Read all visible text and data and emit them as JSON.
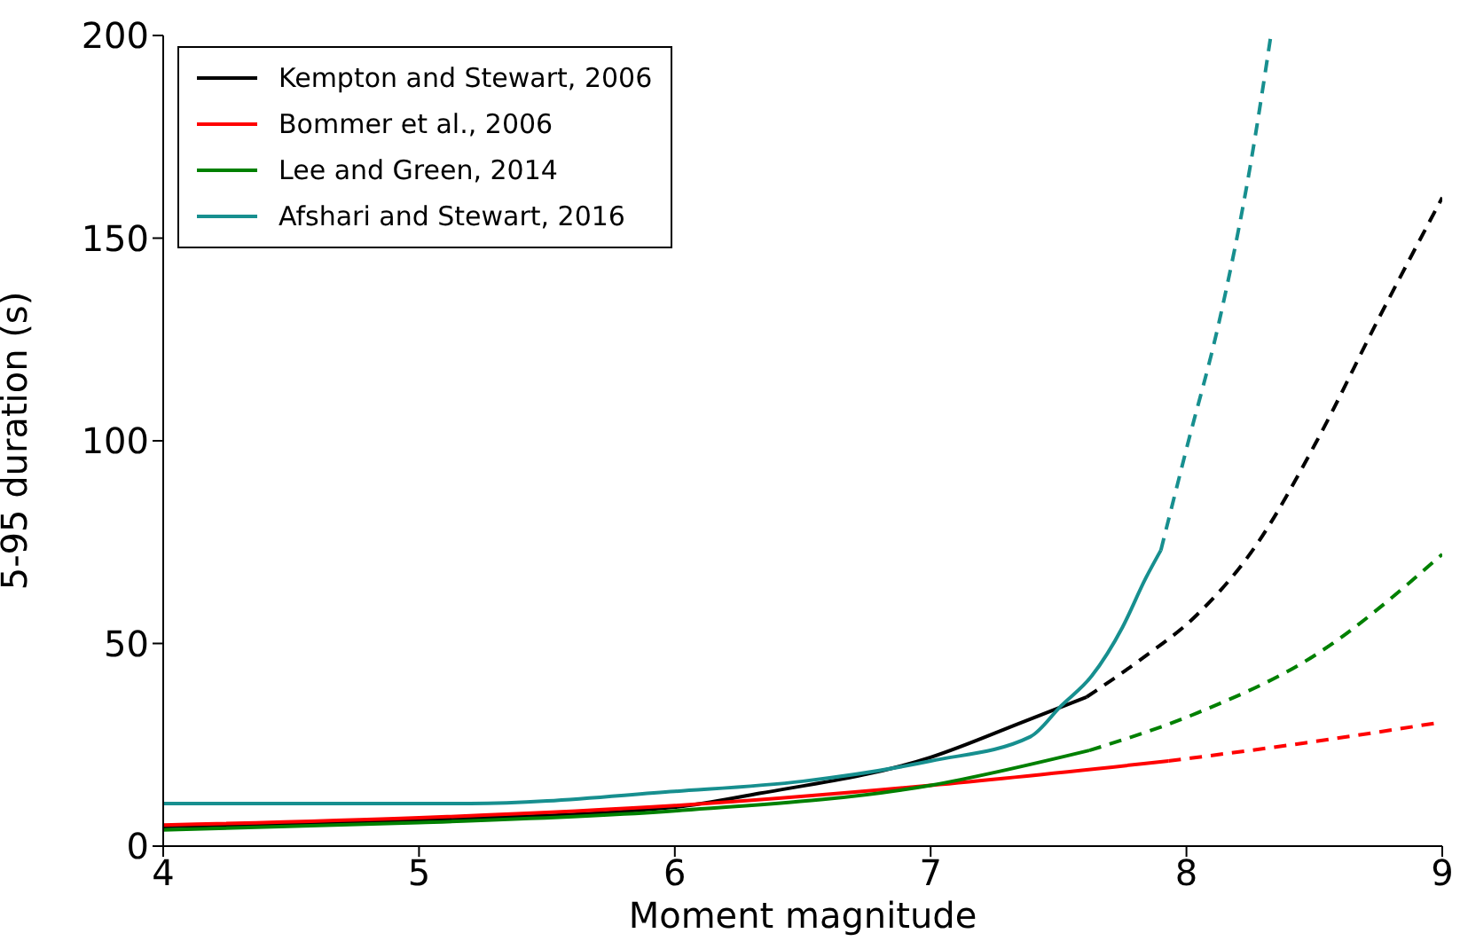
{
  "chart_data": {
    "type": "line",
    "xlabel": "Moment magnitude",
    "ylabel": "5-95 duration (s)",
    "xlim": [
      4,
      9
    ],
    "ylim": [
      0,
      200
    ],
    "xticks": [
      4,
      5,
      6,
      7,
      8,
      9
    ],
    "yticks": [
      0,
      50,
      100,
      150,
      200
    ],
    "legend": "top left",
    "series": [
      {
        "name": "Kempton and Stewart, 2006",
        "color": "#000000",
        "line_style": "solid",
        "x": [
          4,
          5,
          6,
          6.33,
          7,
          7.36,
          7.61
        ],
        "values": [
          4.8,
          6.5,
          9.6,
          13,
          21.9,
          30.6,
          36.8
        ]
      },
      {
        "name": "Bommer et al., 2006",
        "color": "#ff0000",
        "line_style": "solid",
        "x": [
          4,
          5,
          6,
          7,
          7.93
        ],
        "values": [
          5.2,
          7,
          10,
          15,
          21
        ]
      },
      {
        "name": "Lee and Green, 2014",
        "color": "#008000",
        "line_style": "solid",
        "x": [
          4,
          5,
          6,
          7,
          7.62
        ],
        "values": [
          4,
          5.8,
          8.7,
          15,
          23.6
        ]
      },
      {
        "name": "Afshari and Stewart, 2016",
        "color": "#178f8f",
        "line_style": "solid",
        "x": [
          4,
          5.2,
          6,
          6.5,
          7,
          7.39,
          7.51,
          7.63,
          7.75,
          7.84,
          7.9
        ],
        "values": [
          10.5,
          10.5,
          13.5,
          16,
          21,
          27,
          34.6,
          42,
          54,
          66,
          73
        ]
      },
      {
        "color": "#000000",
        "line_style": "dashed",
        "x": [
          7.61,
          7.82,
          8.04,
          8.27,
          8.51,
          8.75,
          9
        ],
        "values": [
          36.8,
          46,
          57,
          74,
          100,
          130,
          160
        ]
      },
      {
        "color": "#ff0000",
        "line_style": "dashed",
        "x": [
          7.93,
          8.5,
          9
        ],
        "values": [
          21,
          25.8,
          30.6
        ]
      },
      {
        "color": "#008000",
        "line_style": "dashed",
        "x": [
          7.62,
          8.04,
          8.5,
          9
        ],
        "values": [
          23.6,
          32.8,
          47,
          72
        ]
      },
      {
        "color": "#178f8f",
        "line_style": "dashed",
        "x": [
          7.9,
          8,
          8.13,
          8.25,
          8.33
        ],
        "values": [
          73,
          98,
          130,
          168,
          200
        ]
      }
    ]
  }
}
